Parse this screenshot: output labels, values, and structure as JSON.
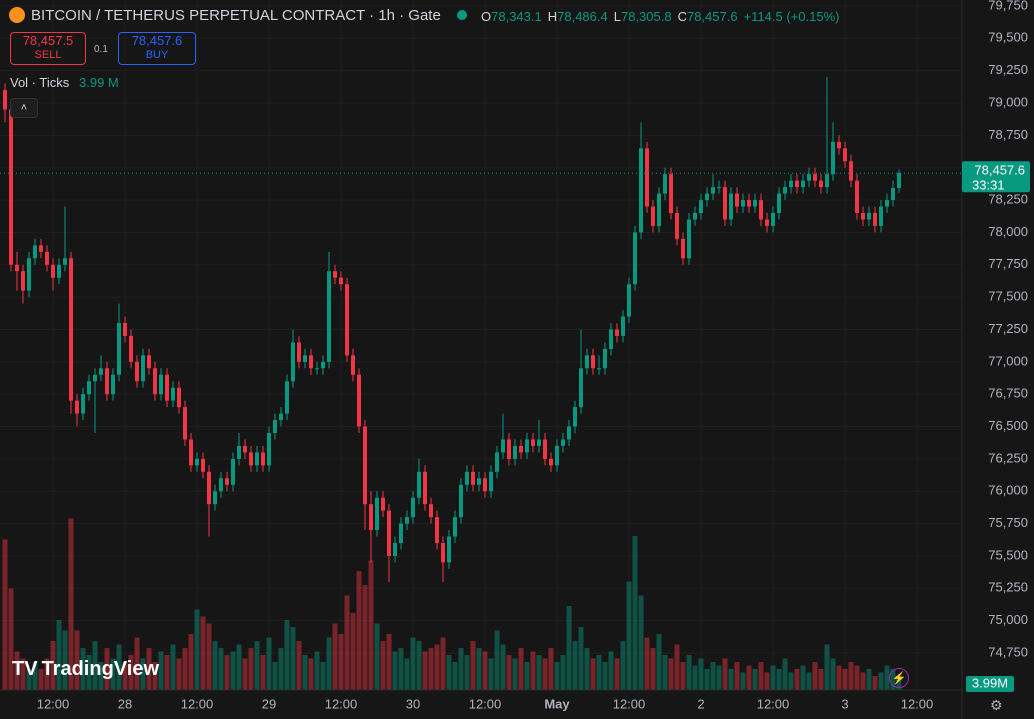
{
  "header": {
    "symbol": "BITCOIN / TETHERUS PERPETUAL CONTRACT · 1h · Gate",
    "ohlc": [
      [
        "O",
        "78,343.1"
      ],
      [
        "H",
        "78,486.4"
      ],
      [
        "L",
        "78,305.8"
      ],
      [
        "C",
        "78,457.6"
      ]
    ],
    "change": "+114.5 (+0.15%)",
    "sell_price": "78,457.5",
    "sell": "SELL",
    "spread": "0.1",
    "buy_price": "78,457.6",
    "buy": "BUY",
    "volume_title": "Vol · Ticks",
    "volume_value": "3.99 M",
    "logo": "TradingView"
  },
  "chart_data": {
    "type": "candlestick",
    "up_color": "#089981",
    "down_color": "#f23645",
    "ylim": [
      74464,
      79796
    ],
    "xlim": [
      -0.8333,
      159.5
    ],
    "yticks": [
      {
        "value": 74750,
        "label": "74,750"
      },
      {
        "value": 75000,
        "label": "75,000"
      },
      {
        "value": 75250,
        "label": "75,250"
      },
      {
        "value": 75500,
        "label": "75,500"
      },
      {
        "value": 75750,
        "label": "75,750"
      },
      {
        "value": 76000,
        "label": "76,000"
      },
      {
        "value": 76250,
        "label": "76,250"
      },
      {
        "value": 76500,
        "label": "76,500"
      },
      {
        "value": 76750,
        "label": "76,750"
      },
      {
        "value": 77000,
        "label": "77,000"
      },
      {
        "value": 77250,
        "label": "77,250"
      },
      {
        "value": 77500,
        "label": "77,500"
      },
      {
        "value": 77750,
        "label": "77,750"
      },
      {
        "value": 78000,
        "label": "78,000"
      },
      {
        "value": 78250,
        "label": "78,250"
      },
      {
        "value": 78500,
        "label": "78,500"
      },
      {
        "value": 78750,
        "label": "78,750"
      },
      {
        "value": 79000,
        "label": "79,000"
      },
      {
        "value": 79250,
        "label": "79,250"
      },
      {
        "value": 79500,
        "label": "79,500"
      },
      {
        "value": 79750,
        "label": "79,750"
      }
    ],
    "xticks": [
      {
        "value": 8,
        "label": "12:00"
      },
      {
        "value": 20,
        "label": "28"
      },
      {
        "value": 32,
        "label": "12:00"
      },
      {
        "value": 44,
        "label": "29"
      },
      {
        "value": 56,
        "label": "12:00"
      },
      {
        "value": 68,
        "label": "30"
      },
      {
        "value": 80,
        "label": "12:00"
      },
      {
        "value": 92,
        "label": "May"
      },
      {
        "value": 104,
        "label": "12:00"
      },
      {
        "value": 116,
        "label": "2"
      },
      {
        "value": 128,
        "label": "12:00"
      },
      {
        "value": 140,
        "label": "3"
      },
      {
        "value": 152,
        "label": "12:00"
      }
    ],
    "last_label": "78,457.6",
    "countdown": "33:31",
    "volume_label": "3.99M",
    "ohlc": [
      [
        79100,
        79150,
        78850,
        78950
      ],
      [
        78950,
        79000,
        77700,
        77750
      ],
      [
        77750,
        77850,
        77550,
        77700
      ],
      [
        77700,
        77750,
        77450,
        77550
      ],
      [
        77550,
        77850,
        77500,
        77800
      ],
      [
        77800,
        77950,
        77750,
        77900
      ],
      [
        77900,
        77950,
        77800,
        77850
      ],
      [
        77850,
        77900,
        77700,
        77750
      ],
      [
        77750,
        77800,
        77550,
        77650
      ],
      [
        77650,
        77800,
        77600,
        77750
      ],
      [
        77750,
        78200,
        77700,
        77800
      ],
      [
        77800,
        77850,
        76600,
        76700
      ],
      [
        76700,
        76750,
        76500,
        76600
      ],
      [
        76600,
        76800,
        76550,
        76750
      ],
      [
        76750,
        76900,
        76700,
        76850
      ],
      [
        76850,
        76950,
        76450,
        76900
      ],
      [
        76900,
        77050,
        76850,
        76950
      ],
      [
        76950,
        77000,
        76700,
        76750
      ],
      [
        76750,
        76950,
        76700,
        76900
      ],
      [
        76900,
        77450,
        76850,
        77300
      ],
      [
        77300,
        77350,
        77150,
        77200
      ],
      [
        77200,
        77250,
        76950,
        77000
      ],
      [
        77000,
        77050,
        76800,
        76850
      ],
      [
        76850,
        77100,
        76800,
        77050
      ],
      [
        77050,
        77100,
        76900,
        76950
      ],
      [
        76950,
        77000,
        76700,
        76750
      ],
      [
        76750,
        76950,
        76700,
        76900
      ],
      [
        76900,
        76950,
        76650,
        76700
      ],
      [
        76700,
        76850,
        76650,
        76800
      ],
      [
        76800,
        76850,
        76600,
        76650
      ],
      [
        76650,
        76700,
        76350,
        76400
      ],
      [
        76400,
        76450,
        76150,
        76200
      ],
      [
        76200,
        76300,
        76150,
        76250
      ],
      [
        76250,
        76300,
        76100,
        76150
      ],
      [
        76150,
        76200,
        75650,
        75900
      ],
      [
        75900,
        76050,
        75850,
        76000
      ],
      [
        76000,
        76150,
        75950,
        76100
      ],
      [
        76100,
        76150,
        76000,
        76050
      ],
      [
        76050,
        76300,
        76000,
        76250
      ],
      [
        76250,
        76450,
        76200,
        76350
      ],
      [
        76350,
        76400,
        76250,
        76300
      ],
      [
        76300,
        76350,
        76150,
        76200
      ],
      [
        76200,
        76350,
        76150,
        76300
      ],
      [
        76300,
        76350,
        76150,
        76200
      ],
      [
        76200,
        76500,
        76150,
        76450
      ],
      [
        76450,
        76600,
        76400,
        76550
      ],
      [
        76550,
        76650,
        76500,
        76600
      ],
      [
        76600,
        76900,
        76550,
        76850
      ],
      [
        76850,
        77250,
        76800,
        77150
      ],
      [
        77150,
        77200,
        76950,
        77000
      ],
      [
        77000,
        77100,
        76950,
        77050
      ],
      [
        77050,
        77100,
        76900,
        76950
      ],
      [
        76950,
        77000,
        76900,
        76950
      ],
      [
        76950,
        77050,
        76900,
        77000
      ],
      [
        77000,
        77850,
        76950,
        77700
      ],
      [
        77700,
        77750,
        77600,
        77650
      ],
      [
        77650,
        77700,
        77550,
        77600
      ],
      [
        77600,
        77650,
        77000,
        77050
      ],
      [
        77050,
        77100,
        76850,
        76900
      ],
      [
        76900,
        76950,
        76450,
        76500
      ],
      [
        76500,
        76550,
        75700,
        75900
      ],
      [
        75900,
        76000,
        75450,
        75700
      ],
      [
        75700,
        76000,
        75650,
        75950
      ],
      [
        75950,
        76000,
        75800,
        75850
      ],
      [
        75850,
        75900,
        75300,
        75500
      ],
      [
        75500,
        75650,
        75450,
        75600
      ],
      [
        75600,
        75800,
        75550,
        75750
      ],
      [
        75750,
        75850,
        75700,
        75800
      ],
      [
        75800,
        76000,
        75750,
        75950
      ],
      [
        75950,
        76250,
        75900,
        76150
      ],
      [
        76150,
        76200,
        75850,
        75900
      ],
      [
        75900,
        75950,
        75750,
        75800
      ],
      [
        75800,
        75850,
        75550,
        75600
      ],
      [
        75600,
        75650,
        75300,
        75450
      ],
      [
        75450,
        75700,
        75400,
        75650
      ],
      [
        75650,
        75850,
        75600,
        75800
      ],
      [
        75800,
        76100,
        75750,
        76050
      ],
      [
        76050,
        76200,
        76000,
        76150
      ],
      [
        76150,
        76200,
        76000,
        76050
      ],
      [
        76050,
        76150,
        76000,
        76100
      ],
      [
        76100,
        76150,
        75950,
        76000
      ],
      [
        76000,
        76200,
        75950,
        76150
      ],
      [
        76150,
        76350,
        76100,
        76300
      ],
      [
        76300,
        76600,
        76250,
        76400
      ],
      [
        76400,
        76450,
        76200,
        76250
      ],
      [
        76250,
        76400,
        76200,
        76350
      ],
      [
        76350,
        76400,
        76250,
        76300
      ],
      [
        76300,
        76450,
        76250,
        76400
      ],
      [
        76400,
        76450,
        76300,
        76350
      ],
      [
        76350,
        76550,
        76300,
        76400
      ],
      [
        76400,
        76450,
        76200,
        76250
      ],
      [
        76250,
        76300,
        76150,
        76200
      ],
      [
        76200,
        76400,
        76150,
        76350
      ],
      [
        76350,
        76450,
        76300,
        76400
      ],
      [
        76400,
        76550,
        76350,
        76500
      ],
      [
        76500,
        76700,
        76450,
        76650
      ],
      [
        76650,
        77250,
        76600,
        76950
      ],
      [
        76950,
        77100,
        76900,
        77050
      ],
      [
        77050,
        77100,
        76900,
        76950
      ],
      [
        76950,
        77050,
        76900,
        76950
      ],
      [
        76950,
        77150,
        76900,
        77100
      ],
      [
        77100,
        77300,
        77050,
        77250
      ],
      [
        77250,
        77300,
        77150,
        77200
      ],
      [
        77200,
        77400,
        77150,
        77350
      ],
      [
        77350,
        77650,
        77300,
        77600
      ],
      [
        77600,
        78050,
        77550,
        78000
      ],
      [
        78000,
        78850,
        77950,
        78650
      ],
      [
        78650,
        78700,
        78150,
        78200
      ],
      [
        78200,
        78250,
        78000,
        78050
      ],
      [
        78050,
        78350,
        78000,
        78300
      ],
      [
        78300,
        78500,
        78250,
        78450
      ],
      [
        78450,
        78500,
        78100,
        78150
      ],
      [
        78150,
        78200,
        77900,
        77950
      ],
      [
        77950,
        78000,
        77750,
        77800
      ],
      [
        77800,
        78150,
        77750,
        78100
      ],
      [
        78100,
        78200,
        78050,
        78150
      ],
      [
        78150,
        78300,
        78100,
        78250
      ],
      [
        78250,
        78350,
        78200,
        78300
      ],
      [
        78300,
        78450,
        78250,
        78350
      ],
      [
        78350,
        78400,
        78300,
        78350
      ],
      [
        78350,
        78400,
        78050,
        78100
      ],
      [
        78100,
        78350,
        78050,
        78300
      ],
      [
        78300,
        78350,
        78150,
        78200
      ],
      [
        78200,
        78300,
        78150,
        78250
      ],
      [
        78250,
        78300,
        78150,
        78200
      ],
      [
        78200,
        78300,
        78150,
        78250
      ],
      [
        78250,
        78300,
        78050,
        78100
      ],
      [
        78100,
        78150,
        78000,
        78050
      ],
      [
        78050,
        78200,
        78000,
        78150
      ],
      [
        78150,
        78350,
        78100,
        78300
      ],
      [
        78300,
        78400,
        78250,
        78350
      ],
      [
        78350,
        78450,
        78300,
        78400
      ],
      [
        78400,
        78450,
        78300,
        78350
      ],
      [
        78350,
        78450,
        78300,
        78400
      ],
      [
        78400,
        78500,
        78350,
        78450
      ],
      [
        78450,
        78500,
        78350,
        78400
      ],
      [
        78400,
        78450,
        78300,
        78350
      ],
      [
        78350,
        79200,
        78300,
        78450
      ],
      [
        78450,
        78850,
        78400,
        78700
      ],
      [
        78700,
        78750,
        78600,
        78650
      ],
      [
        78650,
        78700,
        78500,
        78550
      ],
      [
        78550,
        78600,
        78350,
        78400
      ],
      [
        78400,
        78450,
        78100,
        78150
      ],
      [
        78150,
        78200,
        78050,
        78100
      ],
      [
        78100,
        78200,
        78050,
        78150
      ],
      [
        78150,
        78200,
        78000,
        78050
      ],
      [
        78050,
        78250,
        78000,
        78200
      ],
      [
        78200,
        78300,
        78150,
        78250
      ],
      [
        78250,
        78400,
        78200,
        78343.1
      ],
      [
        78343.1,
        78486.4,
        78305.8,
        78457.6
      ]
    ],
    "volumes": [
      43,
      29,
      11,
      9,
      6,
      8,
      6,
      9,
      14,
      20,
      17,
      49,
      17,
      12,
      10,
      14,
      8,
      12,
      9,
      13,
      8,
      10,
      15,
      9,
      12,
      8,
      11,
      10,
      13,
      9,
      12,
      16,
      23,
      21,
      19,
      14,
      12,
      10,
      11,
      13,
      9,
      12,
      14,
      10,
      15,
      8,
      12,
      20,
      18,
      14,
      10,
      9,
      11,
      8,
      15,
      19,
      16,
      27,
      22,
      34,
      30,
      37,
      19,
      14,
      16,
      11,
      12,
      9,
      15,
      14,
      11,
      12,
      13,
      15,
      10,
      8,
      12,
      10,
      14,
      12,
      11,
      9,
      17,
      13,
      10,
      9,
      12,
      8,
      11,
      10,
      9,
      12,
      8,
      10,
      24,
      14,
      18,
      12,
      9,
      10,
      8,
      11,
      9,
      14,
      31,
      44,
      27,
      15,
      12,
      16,
      10,
      9,
      13,
      8,
      10,
      7,
      9,
      6,
      8,
      7,
      9,
      6,
      8,
      5,
      7,
      6,
      8,
      5,
      7,
      6,
      9,
      5,
      6,
      7,
      5,
      8,
      6,
      13,
      9,
      7,
      6,
      8,
      7,
      5,
      6,
      4,
      5,
      7,
      6,
      3.99
    ]
  }
}
